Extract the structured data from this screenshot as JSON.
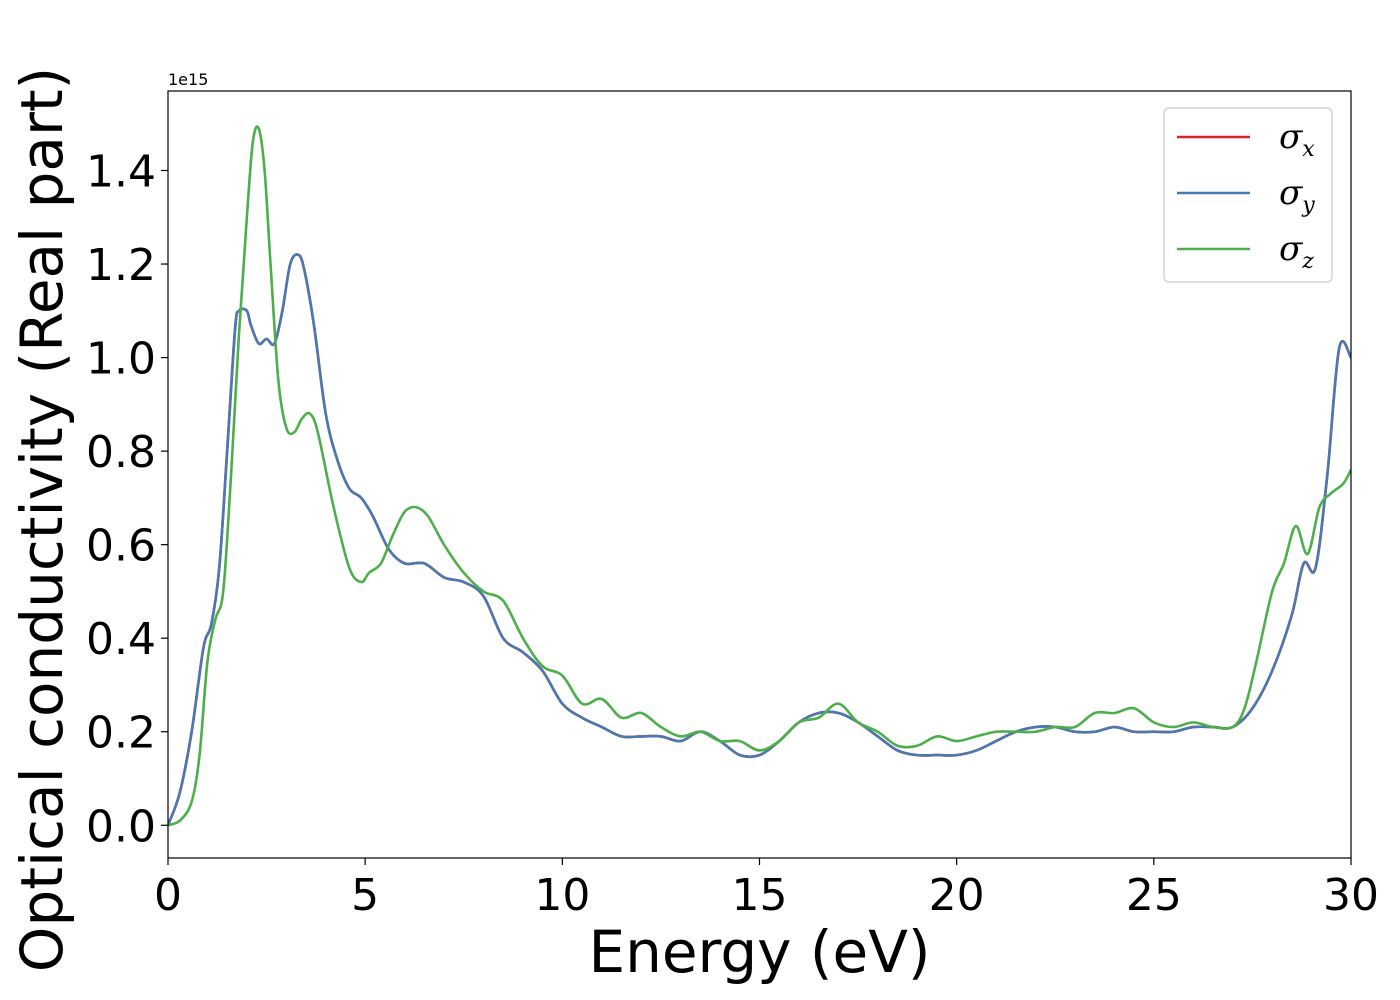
{
  "chart_data": {
    "type": "line",
    "title": "",
    "xlabel": "Energy (eV)",
    "ylabel": "Optical conductivity (Real part)",
    "y_offset_label": "1e15",
    "xlim": [
      0,
      30
    ],
    "ylim": [
      -0.07,
      1.57
    ],
    "xticks": [
      0,
      5,
      10,
      15,
      20,
      25,
      30
    ],
    "xtick_labels": [
      "0",
      "5",
      "10",
      "15",
      "20",
      "25",
      "30"
    ],
    "yticks": [
      0.0,
      0.2,
      0.4,
      0.6,
      0.8,
      1.0,
      1.2,
      1.4
    ],
    "ytick_labels": [
      "0.0",
      "0.2",
      "0.4",
      "0.6",
      "0.8",
      "1.0",
      "1.2",
      "1.4"
    ],
    "grid": false,
    "legend_position": "top-right",
    "series": [
      {
        "name": "σx",
        "legend_base": "σ",
        "legend_sub": "x",
        "color": "#d62728",
        "x": [
          0,
          0.3,
          0.6,
          0.9,
          1.1,
          1.3,
          1.5,
          1.7,
          1.8,
          2.0,
          2.1,
          2.3,
          2.5,
          2.7,
          2.9,
          3.1,
          3.3,
          3.45,
          3.7,
          4.0,
          4.3,
          4.6,
          4.9,
          5.2,
          5.6,
          6.0,
          6.5,
          7.0,
          7.5,
          8.0,
          8.5,
          9.0,
          9.5,
          10.0,
          10.5,
          11.0,
          11.5,
          12.0,
          12.5,
          13.0,
          13.5,
          14.0,
          14.5,
          15.0,
          15.5,
          16.0,
          16.5,
          17.0,
          17.5,
          18.0,
          18.5,
          19.0,
          19.5,
          20.0,
          20.5,
          21.0,
          21.5,
          22.0,
          22.5,
          23.0,
          23.5,
          24.0,
          24.5,
          25.0,
          25.5,
          26.0,
          26.5,
          27.0,
          27.5,
          28.0,
          28.5,
          28.8,
          29.1,
          29.4,
          29.7,
          30.0
        ],
        "y": [
          0,
          0.07,
          0.2,
          0.38,
          0.43,
          0.55,
          0.8,
          1.06,
          1.1,
          1.1,
          1.07,
          1.03,
          1.04,
          1.03,
          1.1,
          1.2,
          1.22,
          1.19,
          1.07,
          0.88,
          0.78,
          0.72,
          0.7,
          0.66,
          0.59,
          0.56,
          0.56,
          0.53,
          0.52,
          0.49,
          0.4,
          0.37,
          0.33,
          0.26,
          0.23,
          0.21,
          0.19,
          0.19,
          0.19,
          0.18,
          0.2,
          0.18,
          0.15,
          0.15,
          0.18,
          0.22,
          0.24,
          0.24,
          0.22,
          0.19,
          0.16,
          0.15,
          0.15,
          0.15,
          0.16,
          0.18,
          0.2,
          0.21,
          0.21,
          0.2,
          0.2,
          0.21,
          0.2,
          0.2,
          0.2,
          0.21,
          0.21,
          0.21,
          0.25,
          0.33,
          0.45,
          0.56,
          0.55,
          0.75,
          1.02,
          1.0
        ]
      },
      {
        "name": "σy",
        "legend_base": "σ",
        "legend_sub": "y",
        "color": "#4a78b0",
        "x": [
          0,
          0.3,
          0.6,
          0.9,
          1.1,
          1.3,
          1.5,
          1.7,
          1.8,
          2.0,
          2.1,
          2.3,
          2.5,
          2.7,
          2.9,
          3.1,
          3.3,
          3.45,
          3.7,
          4.0,
          4.3,
          4.6,
          4.9,
          5.2,
          5.6,
          6.0,
          6.5,
          7.0,
          7.5,
          8.0,
          8.5,
          9.0,
          9.5,
          10.0,
          10.5,
          11.0,
          11.5,
          12.0,
          12.5,
          13.0,
          13.5,
          14.0,
          14.5,
          15.0,
          15.5,
          16.0,
          16.5,
          17.0,
          17.5,
          18.0,
          18.5,
          19.0,
          19.5,
          20.0,
          20.5,
          21.0,
          21.5,
          22.0,
          22.5,
          23.0,
          23.5,
          24.0,
          24.5,
          25.0,
          25.5,
          26.0,
          26.5,
          27.0,
          27.5,
          28.0,
          28.5,
          28.8,
          29.1,
          29.4,
          29.7,
          30.0
        ],
        "y": [
          0,
          0.07,
          0.2,
          0.38,
          0.43,
          0.55,
          0.8,
          1.06,
          1.1,
          1.1,
          1.07,
          1.03,
          1.04,
          1.03,
          1.1,
          1.2,
          1.22,
          1.19,
          1.07,
          0.88,
          0.78,
          0.72,
          0.7,
          0.66,
          0.59,
          0.56,
          0.56,
          0.53,
          0.52,
          0.49,
          0.4,
          0.37,
          0.33,
          0.26,
          0.23,
          0.21,
          0.19,
          0.19,
          0.19,
          0.18,
          0.2,
          0.18,
          0.15,
          0.15,
          0.18,
          0.22,
          0.24,
          0.24,
          0.22,
          0.19,
          0.16,
          0.15,
          0.15,
          0.15,
          0.16,
          0.18,
          0.2,
          0.21,
          0.21,
          0.2,
          0.2,
          0.21,
          0.2,
          0.2,
          0.2,
          0.21,
          0.21,
          0.21,
          0.25,
          0.33,
          0.45,
          0.56,
          0.55,
          0.75,
          1.02,
          1.0
        ]
      },
      {
        "name": "σz",
        "legend_base": "σ",
        "legend_sub": "z",
        "color": "#4daf4a",
        "x": [
          0,
          0.3,
          0.6,
          0.8,
          1.0,
          1.2,
          1.4,
          1.6,
          1.8,
          2.0,
          2.15,
          2.3,
          2.45,
          2.6,
          2.8,
          3.0,
          3.2,
          3.4,
          3.6,
          3.8,
          4.2,
          4.6,
          4.9,
          5.1,
          5.4,
          5.7,
          6.0,
          6.3,
          6.6,
          7.0,
          7.5,
          8.0,
          8.5,
          9.0,
          9.5,
          10.0,
          10.5,
          11.0,
          11.5,
          12.0,
          12.5,
          13.0,
          13.5,
          14.0,
          14.5,
          15.0,
          15.5,
          16.0,
          16.5,
          17.0,
          17.5,
          18.0,
          18.5,
          19.0,
          19.5,
          20.0,
          20.5,
          21.0,
          21.5,
          22.0,
          22.5,
          23.0,
          23.5,
          24.0,
          24.5,
          25.0,
          25.5,
          26.0,
          26.5,
          27.0,
          27.3,
          27.6,
          28.0,
          28.3,
          28.6,
          28.9,
          29.2,
          29.5,
          29.8,
          30.0
        ],
        "y": [
          0,
          0.01,
          0.05,
          0.15,
          0.35,
          0.44,
          0.5,
          0.75,
          1.05,
          1.3,
          1.46,
          1.49,
          1.4,
          1.2,
          0.95,
          0.85,
          0.84,
          0.87,
          0.88,
          0.84,
          0.68,
          0.55,
          0.52,
          0.54,
          0.56,
          0.62,
          0.67,
          0.68,
          0.66,
          0.6,
          0.54,
          0.5,
          0.48,
          0.4,
          0.34,
          0.32,
          0.26,
          0.27,
          0.23,
          0.24,
          0.21,
          0.19,
          0.2,
          0.18,
          0.18,
          0.16,
          0.18,
          0.22,
          0.23,
          0.26,
          0.22,
          0.2,
          0.17,
          0.17,
          0.19,
          0.18,
          0.19,
          0.2,
          0.2,
          0.2,
          0.21,
          0.21,
          0.24,
          0.24,
          0.25,
          0.22,
          0.21,
          0.22,
          0.21,
          0.21,
          0.25,
          0.35,
          0.5,
          0.56,
          0.64,
          0.58,
          0.68,
          0.71,
          0.73,
          0.76
        ]
      }
    ]
  }
}
